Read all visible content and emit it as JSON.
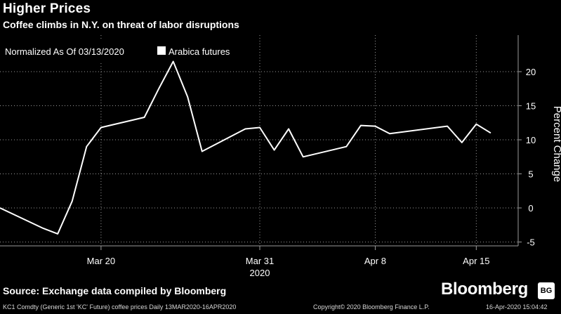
{
  "header": {
    "title": "Higher Prices",
    "subtitle": "Coffee climbs in N.Y. on threat of labor disruptions"
  },
  "footer": {
    "source": "Source: Exchange data compiled by Bloomberg",
    "brand": "Bloomberg",
    "brand_badge": "BG",
    "left_note": "KC1 Comdty (Generic 1st 'KC' Future) coffee prices  Daily 13MAR2020-16APR2020",
    "copyright": "Copyright© 2020 Bloomberg Finance L.P.",
    "timestamp": "16-Apr-2020 15:04:42"
  },
  "colors": {
    "background": "#000000",
    "line": "#ffffff",
    "grid": "#9a9a9a",
    "text": "#ffffff"
  },
  "chart_data": {
    "type": "line",
    "legend": {
      "placement": "top-left",
      "note": "Normalized As Of 03/13/2020",
      "label": "Arabica futures"
    },
    "ylabel": "Percent Change",
    "ylim": [
      -6,
      25
    ],
    "y_ticks": [
      -5,
      0,
      5,
      10,
      15,
      20
    ],
    "x_ticks": [
      {
        "date": "2020-03-20",
        "label": "Mar 20"
      },
      {
        "date": "2020-03-31",
        "label": "Mar 31"
      },
      {
        "date": "2020-04-08",
        "label": "Apr 8"
      },
      {
        "date": "2020-04-15",
        "label": "Apr 15"
      }
    ],
    "x_year_label": "2020",
    "grid": true,
    "series": [
      {
        "name": "Arabica futures",
        "x": [
          "2020-03-13",
          "2020-03-16",
          "2020-03-17",
          "2020-03-18",
          "2020-03-19",
          "2020-03-20",
          "2020-03-23",
          "2020-03-24",
          "2020-03-25",
          "2020-03-26",
          "2020-03-27",
          "2020-03-30",
          "2020-03-31",
          "2020-04-01",
          "2020-04-02",
          "2020-04-03",
          "2020-04-06",
          "2020-04-07",
          "2020-04-08",
          "2020-04-09",
          "2020-04-13",
          "2020-04-14",
          "2020-04-15",
          "2020-04-16"
        ],
        "values": [
          0,
          -3,
          -3.8,
          1,
          9,
          11.8,
          13.3,
          17.5,
          21.5,
          16.3,
          8.3,
          11.6,
          11.8,
          8.5,
          11.6,
          7.5,
          9,
          12.1,
          12,
          10.9,
          12,
          9.6,
          12.3,
          11
        ]
      }
    ]
  }
}
